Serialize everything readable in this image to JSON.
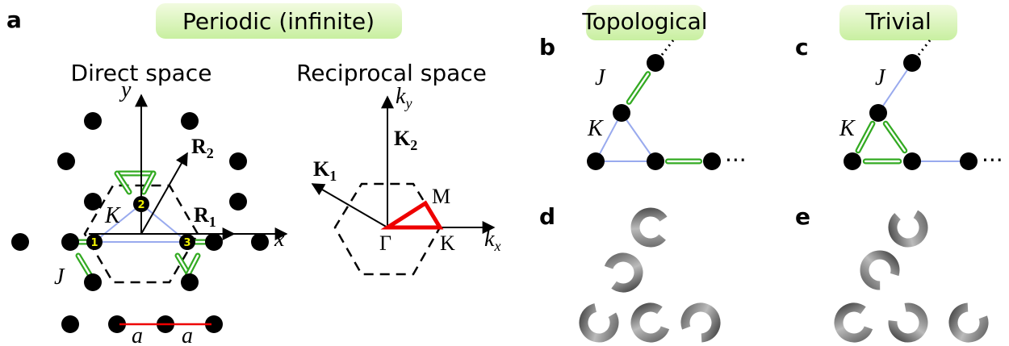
{
  "panel_a": {
    "letter": "a",
    "title": "Periodic (infinite)",
    "direct": {
      "title": "Direct space",
      "y_axis": "y",
      "x_axis": "x",
      "R2": {
        "base": "R",
        "sub": "2"
      },
      "R1": {
        "base": "R",
        "sub": "1"
      },
      "K": "K",
      "J": "J",
      "sites": [
        "1",
        "2",
        "3"
      ],
      "spacing": [
        "a",
        "a"
      ]
    },
    "reciprocal": {
      "title": "Reciprocal space",
      "ky": {
        "base": "k",
        "sub": "y"
      },
      "kx": {
        "base": "k",
        "sub": "x"
      },
      "K2": {
        "base": "K",
        "sub": "2"
      },
      "K1": {
        "base": "K",
        "sub": "1"
      },
      "M": "M",
      "Gamma": "Γ",
      "Kpoint": "K"
    }
  },
  "panel_b": {
    "letter": "b",
    "title": "Topological",
    "J": "J",
    "K": "K",
    "dots": "···"
  },
  "panel_c": {
    "letter": "c",
    "title": "Trivial",
    "J": "J",
    "K": "K",
    "dots": "···"
  },
  "panel_d": {
    "letter": "d"
  },
  "panel_e": {
    "letter": "e"
  }
}
